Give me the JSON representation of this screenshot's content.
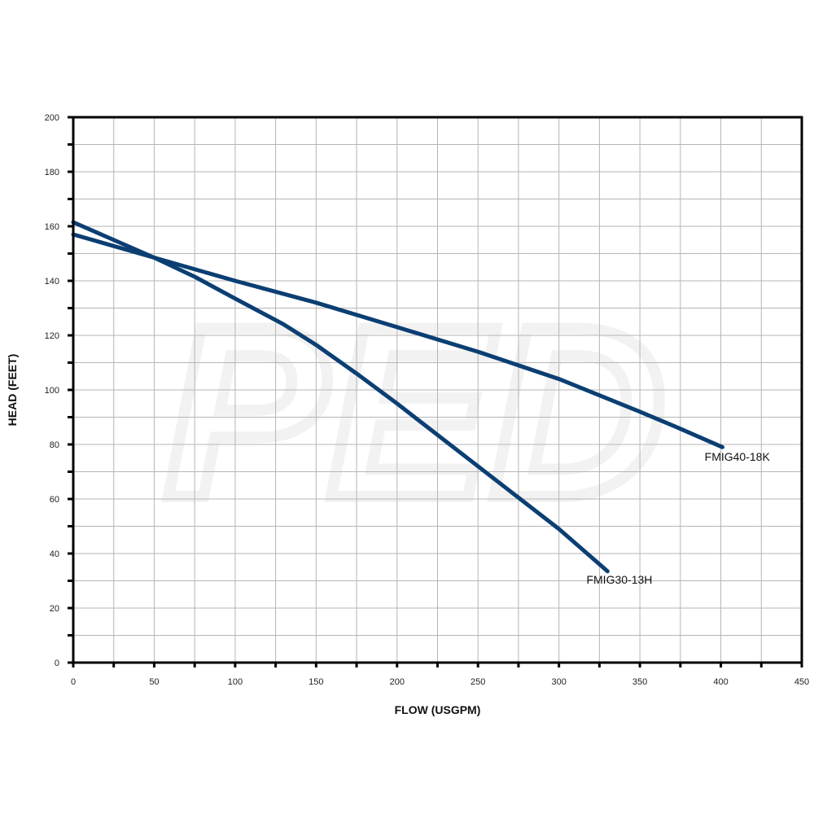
{
  "chart_data": {
    "type": "line",
    "xlabel": "FLOW (USGPM)",
    "ylabel": "HEAD (FEET)",
    "xlim": [
      0,
      450
    ],
    "ylim": [
      0,
      200
    ],
    "x_ticks": [
      0,
      50,
      100,
      150,
      200,
      250,
      300,
      350,
      400,
      450
    ],
    "y_ticks": [
      0,
      20,
      40,
      60,
      80,
      100,
      120,
      140,
      160,
      180,
      200
    ],
    "x_minor_step": 25,
    "y_minor_step": 10,
    "grid": true,
    "series_color": "#0b3f73",
    "series": [
      {
        "name": "FMIG40-18K",
        "points": [
          [
            0,
            157
          ],
          [
            50,
            148.5
          ],
          [
            100,
            140
          ],
          [
            150,
            132
          ],
          [
            200,
            123
          ],
          [
            250,
            114
          ],
          [
            300,
            104
          ],
          [
            350,
            92
          ],
          [
            372,
            86.5
          ],
          [
            401,
            79
          ]
        ]
      },
      {
        "name": "FMIG30-13H",
        "points": [
          [
            0,
            161.5
          ],
          [
            50,
            148.5
          ],
          [
            75,
            141.5
          ],
          [
            100,
            133.5
          ],
          [
            130,
            124
          ],
          [
            150,
            116.5
          ],
          [
            175,
            106
          ],
          [
            200,
            95
          ],
          [
            250,
            72
          ],
          [
            300,
            49
          ],
          [
            330,
            33.5
          ]
        ]
      }
    ],
    "annotations": [
      {
        "text": "FMIG40-18K",
        "x": 390,
        "y": 74
      },
      {
        "text": "FMIG30-13H",
        "x": 317,
        "y": 29
      }
    ]
  }
}
